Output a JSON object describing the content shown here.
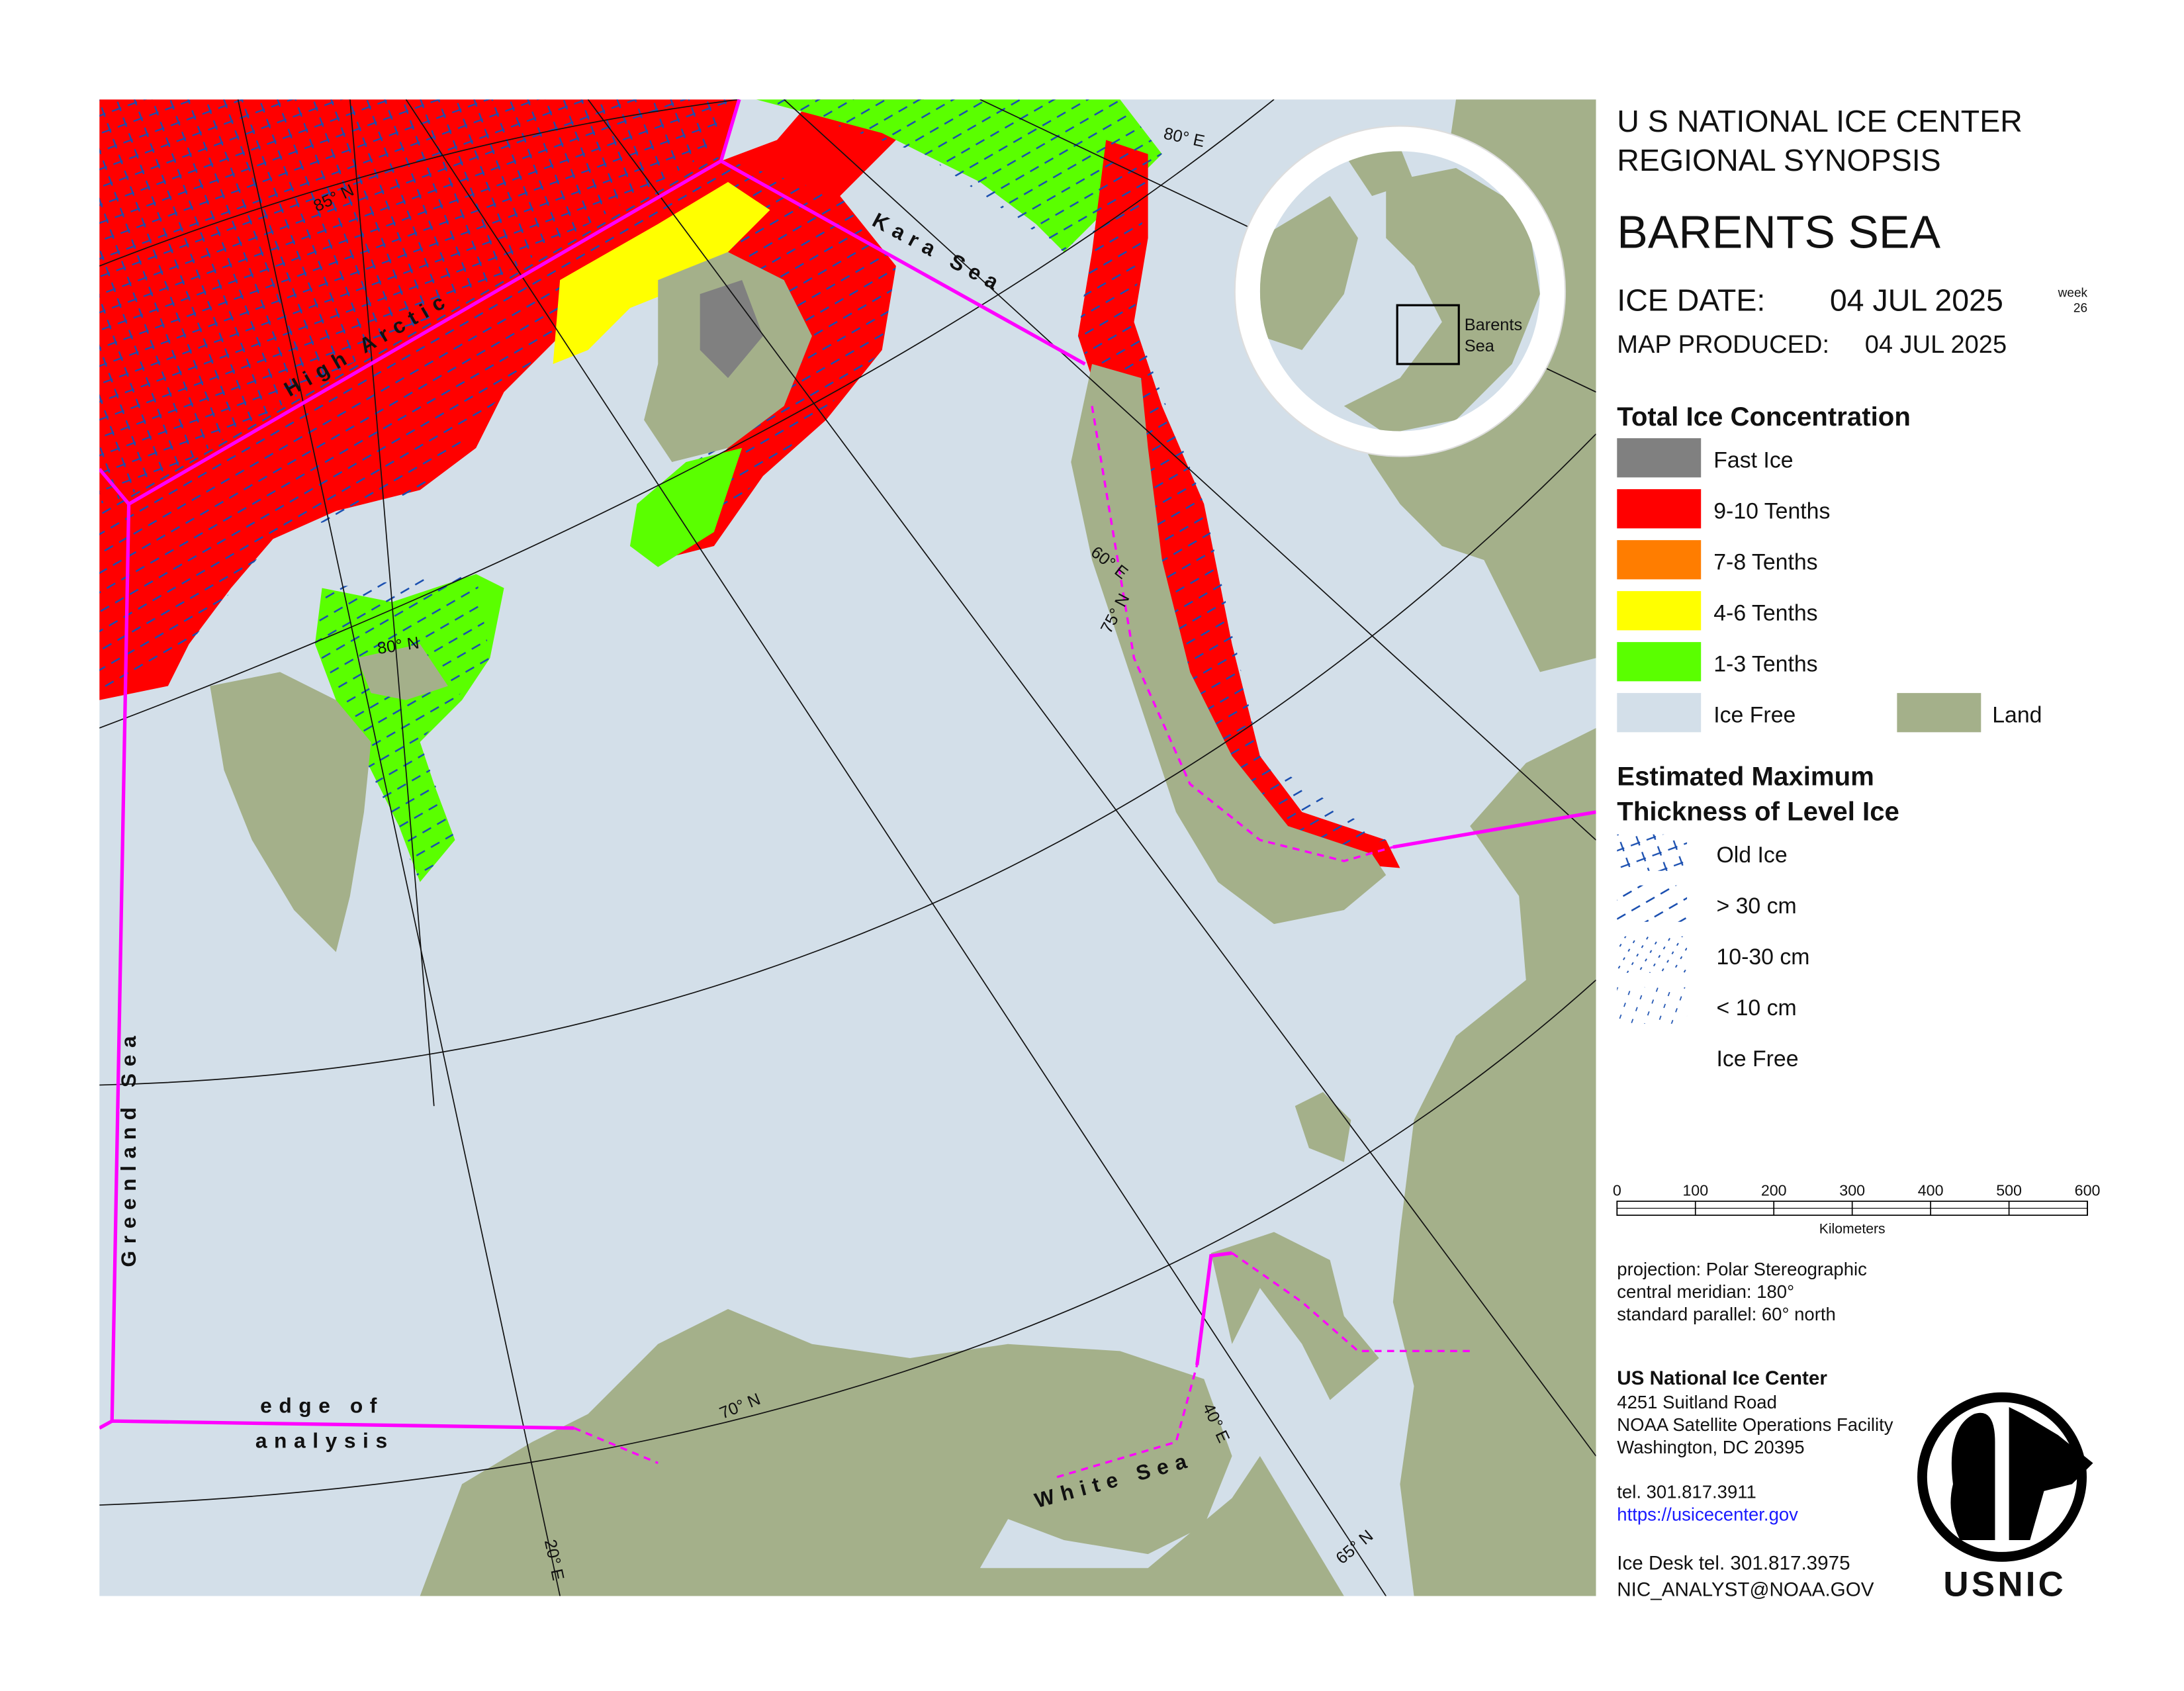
{
  "header": {
    "agency": "U S NATIONAL ICE CENTER",
    "synopsis": "REGIONAL SYNOPSIS",
    "region": "BARENTS SEA",
    "ice_date_label": "ICE DATE:",
    "ice_date": "04 JUL 2025",
    "week_label": "week",
    "week": 26,
    "produced_label": "MAP PRODUCED:",
    "produced": "04 JUL 2025"
  },
  "concentration_legend": {
    "title": "Total Ice Concentration",
    "items": [
      {
        "label": "Fast Ice",
        "color": "#808080"
      },
      {
        "label": "9-10 Tenths",
        "color": "#ff0000"
      },
      {
        "label": "7-8 Tenths",
        "color": "#ff7d00"
      },
      {
        "label": "4-6 Tenths",
        "color": "#ffff00"
      },
      {
        "label": "1-3 Tenths",
        "color": "#5aff00"
      },
      {
        "label": "Ice Free",
        "color": "#d3dfe9"
      },
      {
        "label": "Land",
        "color": "#a4b08a"
      }
    ]
  },
  "thickness_legend": {
    "title_lines": [
      "Estimated Maximum",
      "Thickness of Level Ice"
    ],
    "items": [
      "Old Ice",
      "> 30 cm",
      "10-30 cm",
      "< 10 cm",
      "Ice Free"
    ]
  },
  "scale_bar": {
    "ticks": [
      0,
      100,
      200,
      300,
      400,
      500,
      600
    ],
    "unit": "Kilometers"
  },
  "projection": [
    "projection: Polar Stereographic",
    "central meridian: 180°",
    "standard parallel:  60° north"
  ],
  "contact": {
    "name": "US National Ice Center",
    "address": [
      "4251 Suitland Road",
      "NOAA Satellite Operations Facility",
      "Washington, DC  20395"
    ],
    "tel": "tel. 301.817.3911",
    "url": "https://usicecenter.gov",
    "ice_desk": "Ice Desk tel. 301.817.3975",
    "email": "NIC_ANALYST@NOAA.GOV",
    "logo": "USNIC"
  },
  "inset": {
    "label_lines": [
      "Barents",
      "Sea"
    ]
  },
  "map_labels": [
    "85° N",
    "80° E",
    "Kara Sea",
    "High Arctic",
    "60° E",
    "75° N",
    "80° N",
    "Greenland Sea",
    "edge of",
    "analysis",
    "70° N",
    "White Sea",
    "40° E",
    "20° E",
    "65° N"
  ]
}
